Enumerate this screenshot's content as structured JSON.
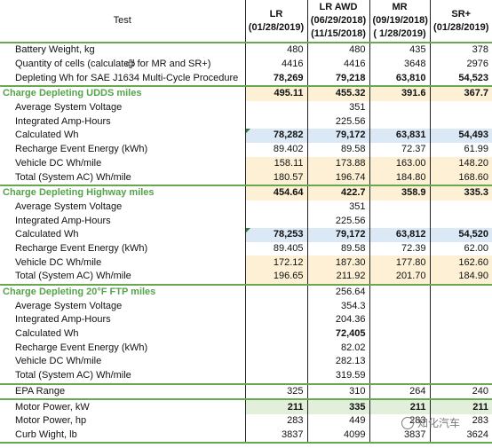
{
  "header": {
    "test": "Test",
    "lr": [
      "LR",
      "(01/28/2019)"
    ],
    "lr_awd": [
      "LR AWD",
      "(06/29/2018)",
      "(11/15/2018)"
    ],
    "mr": [
      "MR",
      "(09/19/2018)",
      "( 1/28/2019)"
    ],
    "sr": [
      "SR+",
      "(01/28/2019)"
    ]
  },
  "rows": [
    {
      "label": "Battery Weight, kg",
      "v": [
        "480",
        "480",
        "435",
        "378"
      ]
    },
    {
      "label": "Quantity of cells (calculated for MR and SR+)",
      "v": [
        "4416",
        "4416",
        "3648",
        "2976"
      ]
    },
    {
      "label": "Depleting Wh for SAE J1634 Multi-Cycle Procedure",
      "v": [
        "78,269",
        "79,218",
        "63,810",
        "54,523"
      ]
    },
    {
      "label": "Charge Depleting UDDS miles",
      "v": [
        "495.11",
        "455.32",
        "391.6",
        "367.7"
      ]
    },
    {
      "label": "Average System Voltage",
      "v": [
        "",
        "351",
        "",
        ""
      ]
    },
    {
      "label": "Integrated Amp-Hours",
      "v": [
        "",
        "225.56",
        "",
        ""
      ]
    },
    {
      "label": "Calculated Wh",
      "v": [
        "78,282",
        "79,172",
        "63,831",
        "54,493"
      ]
    },
    {
      "label": "Recharge Event Energy (kWh)",
      "v": [
        "89.402",
        "89.58",
        "72.37",
        "61.99"
      ]
    },
    {
      "label": "Vehicle DC Wh/mile",
      "v": [
        "158.11",
        "173.88",
        "163.00",
        "148.20"
      ]
    },
    {
      "label": "Total (System AC) Wh/mile",
      "v": [
        "180.57",
        "196.74",
        "184.80",
        "168.60"
      ]
    },
    {
      "label": "Charge Depleting Highway miles",
      "v": [
        "454.64",
        "422.7",
        "358.9",
        "335.3"
      ]
    },
    {
      "label": "Average System Voltage",
      "v": [
        "",
        "351",
        "",
        ""
      ]
    },
    {
      "label": "Integrated Amp-Hours",
      "v": [
        "",
        "225.56",
        "",
        ""
      ]
    },
    {
      "label": "Calculated Wh",
      "v": [
        "78,253",
        "79,172",
        "63,812",
        "54,520"
      ]
    },
    {
      "label": "Recharge Event Energy (kWh)",
      "v": [
        "89.405",
        "89.58",
        "72.39",
        "62.00"
      ]
    },
    {
      "label": "Vehicle DC Wh/mile",
      "v": [
        "172.12",
        "187.30",
        "177.80",
        "162.60"
      ]
    },
    {
      "label": "Total (System AC) Wh/mile",
      "v": [
        "196.65",
        "211.92",
        "201.70",
        "184.90"
      ]
    },
    {
      "label": "Charge Depleting 20°F FTP miles",
      "v": [
        "",
        "256.64",
        "",
        ""
      ]
    },
    {
      "label": "Average System Voltage",
      "v": [
        "",
        "354.3",
        "",
        ""
      ]
    },
    {
      "label": "Integrated Amp-Hours",
      "v": [
        "",
        "204.36",
        "",
        ""
      ]
    },
    {
      "label": "Calculated Wh",
      "v": [
        "",
        "72,405",
        "",
        ""
      ]
    },
    {
      "label": "Recharge Event Energy (kWh)",
      "v": [
        "",
        "82.02",
        "",
        ""
      ]
    },
    {
      "label": "Vehicle DC Wh/mile",
      "v": [
        "",
        "282.13",
        "",
        ""
      ]
    },
    {
      "label": "Total (System AC) Wh/mile",
      "v": [
        "",
        "319.59",
        "",
        ""
      ]
    },
    {
      "label": "EPA Range",
      "v": [
        "325",
        "310",
        "264",
        "240"
      ]
    },
    {
      "label": "Motor Power, kW",
      "v": [
        "211",
        "335",
        "211",
        "211"
      ]
    },
    {
      "label": "Motor Power, hp",
      "v": [
        "283",
        "449",
        "283",
        "283"
      ]
    },
    {
      "label": "Curb Wight, lb",
      "v": [
        "3837",
        "4099",
        "3837",
        "3624"
      ]
    }
  ],
  "watermark": "知化汽车"
}
